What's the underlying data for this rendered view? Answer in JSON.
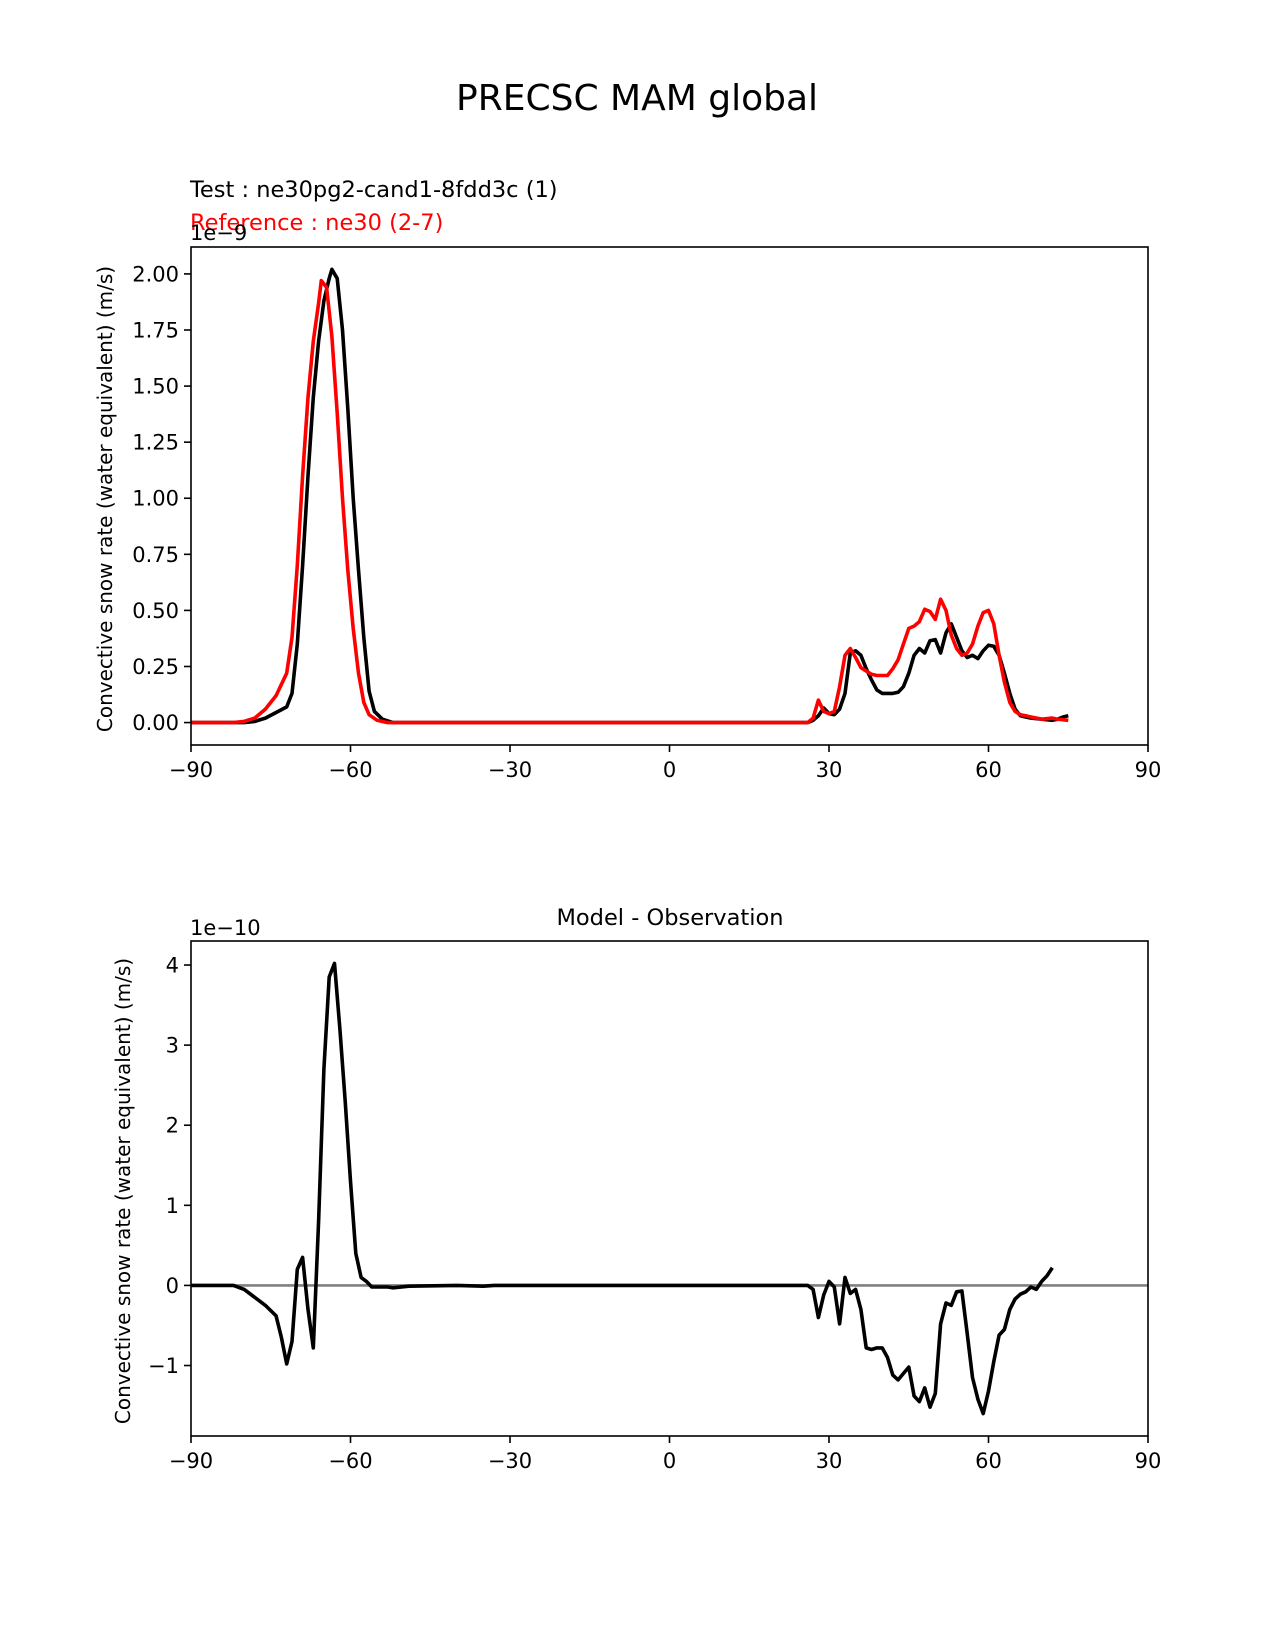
{
  "figure": {
    "suptitle": "PRECSC MAM global",
    "test_label": "Test : ne30pg2-cand1-8fdd3c (1)",
    "reference_label": "Reference : ne30 (2-7)"
  },
  "colors": {
    "test": "#000000",
    "reference": "#ff0000",
    "zero_line": "#808080"
  },
  "chart_data": [
    {
      "type": "line",
      "title": "",
      "xlabel": "",
      "ylabel": "Convective snow rate (water equivalent) (m/s)",
      "offset_text": "1e−9",
      "xlim": [
        -90,
        90
      ],
      "ylim": [
        -0.1,
        2.12
      ],
      "xticks": [
        -90,
        -60,
        -30,
        0,
        30,
        60,
        90
      ],
      "xtick_labels": [
        "−90",
        "−60",
        "−30",
        "0",
        "30",
        "60",
        "90"
      ],
      "yticks": [
        0,
        0.25,
        0.5,
        0.75,
        1.0,
        1.25,
        1.5,
        1.75,
        2.0
      ],
      "ytick_labels": [
        "0.00",
        "0.25",
        "0.50",
        "0.75",
        "1.00",
        "1.25",
        "1.50",
        "1.75",
        "2.00"
      ],
      "series": [
        {
          "name": "Test",
          "color_key": "test",
          "points": [
            [
              -90,
              0
            ],
            [
              -80,
              0
            ],
            [
              -78,
              0.005
            ],
            [
              -76,
              0.02
            ],
            [
              -74,
              0.045
            ],
            [
              -72,
              0.07
            ],
            [
              -71,
              0.13
            ],
            [
              -70,
              0.35
            ],
            [
              -69,
              0.7
            ],
            [
              -68,
              1.1
            ],
            [
              -67,
              1.45
            ],
            [
              -66,
              1.7
            ],
            [
              -65,
              1.88
            ],
            [
              -64,
              1.98
            ],
            [
              -63.5,
              2.02
            ],
            [
              -62.5,
              1.98
            ],
            [
              -61.5,
              1.75
            ],
            [
              -60.5,
              1.4
            ],
            [
              -59.5,
              1.0
            ],
            [
              -58.5,
              0.68
            ],
            [
              -57.5,
              0.38
            ],
            [
              -56.5,
              0.14
            ],
            [
              -55.5,
              0.05
            ],
            [
              -54,
              0.015
            ],
            [
              -52,
              0
            ],
            [
              -30,
              0
            ],
            [
              0,
              0
            ],
            [
              26,
              0
            ],
            [
              27,
              0.01
            ],
            [
              28,
              0.03
            ],
            [
              29,
              0.065
            ],
            [
              30,
              0.04
            ],
            [
              31,
              0.035
            ],
            [
              32,
              0.06
            ],
            [
              33,
              0.13
            ],
            [
              34,
              0.31
            ],
            [
              35,
              0.32
            ],
            [
              36,
              0.3
            ],
            [
              37,
              0.24
            ],
            [
              38,
              0.19
            ],
            [
              39,
              0.145
            ],
            [
              40,
              0.13
            ],
            [
              41,
              0.13
            ],
            [
              42,
              0.13
            ],
            [
              43,
              0.135
            ],
            [
              44,
              0.16
            ],
            [
              45,
              0.22
            ],
            [
              46,
              0.3
            ],
            [
              47,
              0.33
            ],
            [
              48,
              0.31
            ],
            [
              49,
              0.365
            ],
            [
              50,
              0.37
            ],
            [
              51,
              0.31
            ],
            [
              52,
              0.4
            ],
            [
              53,
              0.44
            ],
            [
              54,
              0.38
            ],
            [
              55,
              0.32
            ],
            [
              56,
              0.29
            ],
            [
              57,
              0.3
            ],
            [
              58,
              0.285
            ],
            [
              59,
              0.32
            ],
            [
              60,
              0.345
            ],
            [
              61,
              0.34
            ],
            [
              62,
              0.3
            ],
            [
              63,
              0.22
            ],
            [
              64,
              0.13
            ],
            [
              65,
              0.06
            ],
            [
              66,
              0.03
            ],
            [
              67,
              0.025
            ],
            [
              68,
              0.02
            ],
            [
              70,
              0.015
            ],
            [
              72,
              0.01
            ],
            [
              73,
              0.015
            ],
            [
              74,
              0.025
            ],
            [
              75,
              0.03
            ]
          ]
        },
        {
          "name": "Reference",
          "color_key": "reference",
          "points": [
            [
              -90,
              0
            ],
            [
              -82,
              0
            ],
            [
              -80,
              0.005
            ],
            [
              -78,
              0.02
            ],
            [
              -76,
              0.06
            ],
            [
              -74,
              0.12
            ],
            [
              -72,
              0.22
            ],
            [
              -71,
              0.38
            ],
            [
              -70,
              0.7
            ],
            [
              -69,
              1.1
            ],
            [
              -68,
              1.45
            ],
            [
              -67,
              1.7
            ],
            [
              -66,
              1.87
            ],
            [
              -65.5,
              1.97
            ],
            [
              -64.5,
              1.94
            ],
            [
              -63.5,
              1.72
            ],
            [
              -62.5,
              1.38
            ],
            [
              -61.5,
              1.0
            ],
            [
              -60.5,
              0.68
            ],
            [
              -59.5,
              0.42
            ],
            [
              -58.5,
              0.22
            ],
            [
              -57.5,
              0.09
            ],
            [
              -56.5,
              0.035
            ],
            [
              -55,
              0.01
            ],
            [
              -53,
              0
            ],
            [
              -30,
              0
            ],
            [
              0,
              0
            ],
            [
              26,
              0
            ],
            [
              27,
              0.02
            ],
            [
              28,
              0.1
            ],
            [
              29,
              0.05
            ],
            [
              30,
              0.04
            ],
            [
              31,
              0.05
            ],
            [
              32,
              0.16
            ],
            [
              33,
              0.3
            ],
            [
              34,
              0.33
            ],
            [
              35,
              0.29
            ],
            [
              36,
              0.245
            ],
            [
              37,
              0.23
            ],
            [
              38,
              0.215
            ],
            [
              39,
              0.21
            ],
            [
              40,
              0.21
            ],
            [
              41,
              0.21
            ],
            [
              42,
              0.24
            ],
            [
              43,
              0.28
            ],
            [
              44,
              0.35
            ],
            [
              45,
              0.42
            ],
            [
              46,
              0.43
            ],
            [
              47,
              0.45
            ],
            [
              48,
              0.505
            ],
            [
              49,
              0.495
            ],
            [
              50,
              0.46
            ],
            [
              51,
              0.55
            ],
            [
              52,
              0.5
            ],
            [
              53,
              0.39
            ],
            [
              54,
              0.33
            ],
            [
              55,
              0.3
            ],
            [
              56,
              0.31
            ],
            [
              57,
              0.35
            ],
            [
              58,
              0.43
            ],
            [
              59,
              0.49
            ],
            [
              60,
              0.5
            ],
            [
              61,
              0.44
            ],
            [
              62,
              0.3
            ],
            [
              63,
              0.18
            ],
            [
              64,
              0.09
            ],
            [
              65,
              0.05
            ],
            [
              66,
              0.035
            ],
            [
              67,
              0.03
            ],
            [
              68,
              0.025
            ],
            [
              70,
              0.015
            ],
            [
              72,
              0.02
            ],
            [
              73,
              0.015
            ],
            [
              75,
              0.01
            ]
          ]
        }
      ]
    },
    {
      "type": "line",
      "title": "Model - Observation",
      "xlabel": "",
      "ylabel": "Convective snow rate (water equivalent) (m/s)",
      "offset_text": "1e−10",
      "xlim": [
        -90,
        90
      ],
      "ylim": [
        -1.88,
        4.3
      ],
      "xticks": [
        -90,
        -60,
        -30,
        0,
        30,
        60,
        90
      ],
      "xtick_labels": [
        "−90",
        "−60",
        "−30",
        "0",
        "30",
        "60",
        "90"
      ],
      "yticks": [
        -1,
        0,
        1,
        2,
        3,
        4
      ],
      "ytick_labels": [
        "−1",
        "0",
        "1",
        "2",
        "3",
        "4"
      ],
      "zero_line": 0,
      "series": [
        {
          "name": "Difference",
          "color_key": "test",
          "points": [
            [
              -90,
              0
            ],
            [
              -82,
              0
            ],
            [
              -80,
              -0.05
            ],
            [
              -78,
              -0.15
            ],
            [
              -76,
              -0.25
            ],
            [
              -74,
              -0.38
            ],
            [
              -73,
              -0.65
            ],
            [
              -72,
              -0.98
            ],
            [
              -71,
              -0.7
            ],
            [
              -70,
              0.2
            ],
            [
              -69,
              0.35
            ],
            [
              -68,
              -0.3
            ],
            [
              -67,
              -0.78
            ],
            [
              -66,
              0.8
            ],
            [
              -65,
              2.7
            ],
            [
              -64,
              3.85
            ],
            [
              -63,
              4.02
            ],
            [
              -62,
              3.2
            ],
            [
              -61,
              2.3
            ],
            [
              -60,
              1.3
            ],
            [
              -59,
              0.4
            ],
            [
              -58,
              0.1
            ],
            [
              -57,
              0.05
            ],
            [
              -56,
              -0.02
            ],
            [
              -53,
              -0.02
            ],
            [
              -52,
              -0.03
            ],
            [
              -49,
              -0.01
            ],
            [
              -40,
              0
            ],
            [
              -35,
              -0.01
            ],
            [
              -33,
              0
            ],
            [
              0,
              0
            ],
            [
              26,
              0
            ],
            [
              27,
              -0.05
            ],
            [
              28,
              -0.4
            ],
            [
              29,
              -0.12
            ],
            [
              30,
              0.05
            ],
            [
              31,
              -0.02
            ],
            [
              32,
              -0.48
            ],
            [
              33,
              0.1
            ],
            [
              34,
              -0.1
            ],
            [
              35,
              -0.05
            ],
            [
              36,
              -0.3
            ],
            [
              37,
              -0.78
            ],
            [
              38,
              -0.8
            ],
            [
              39,
              -0.78
            ],
            [
              40,
              -0.78
            ],
            [
              41,
              -0.9
            ],
            [
              42,
              -1.12
            ],
            [
              43,
              -1.18
            ],
            [
              44,
              -1.1
            ],
            [
              45,
              -1.02
            ],
            [
              46,
              -1.38
            ],
            [
              47,
              -1.45
            ],
            [
              48,
              -1.28
            ],
            [
              49,
              -1.52
            ],
            [
              50,
              -1.35
            ],
            [
              51,
              -0.48
            ],
            [
              52,
              -0.22
            ],
            [
              53,
              -0.25
            ],
            [
              54,
              -0.08
            ],
            [
              55,
              -0.07
            ],
            [
              56,
              -0.6
            ],
            [
              57,
              -1.15
            ],
            [
              58,
              -1.42
            ],
            [
              59,
              -1.6
            ],
            [
              60,
              -1.32
            ],
            [
              61,
              -0.95
            ],
            [
              62,
              -0.62
            ],
            [
              63,
              -0.55
            ],
            [
              64,
              -0.3
            ],
            [
              65,
              -0.17
            ],
            [
              66,
              -0.11
            ],
            [
              67,
              -0.08
            ],
            [
              68,
              -0.02
            ],
            [
              69,
              -0.05
            ],
            [
              70,
              0.05
            ],
            [
              71,
              0.12
            ],
            [
              72,
              0.22
            ]
          ]
        }
      ]
    }
  ]
}
